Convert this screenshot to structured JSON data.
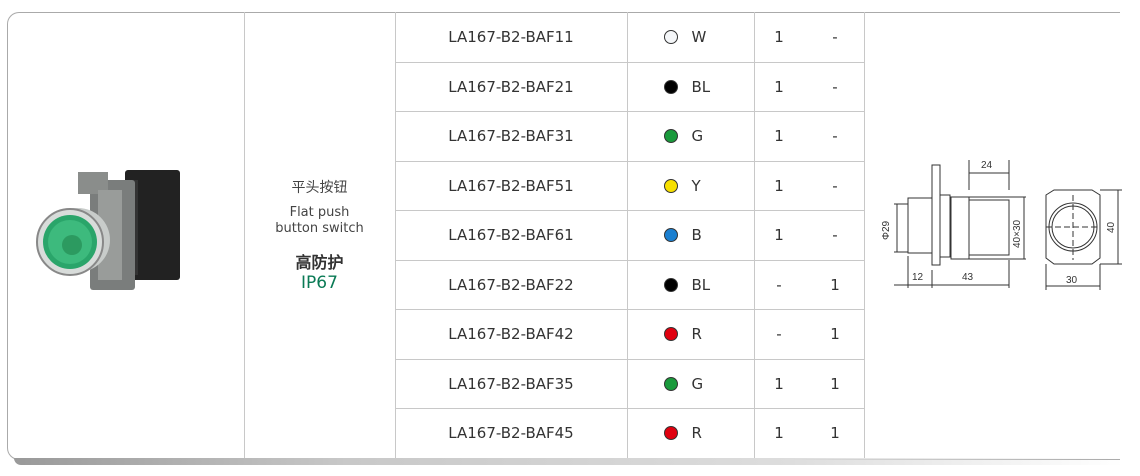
{
  "product": {
    "name_cn": "平头按钮",
    "name_en": "Flat push button switch",
    "protection_cn": "高防护",
    "protection_rating": "IP67",
    "accent_color": "#0a7a55"
  },
  "rows": [
    {
      "model": "LA167-B2-BAF11",
      "color_code": "W",
      "color_hex": "#f4f6f8",
      "no": "1",
      "nc": "-"
    },
    {
      "model": "LA167-B2-BAF21",
      "color_code": "BL",
      "color_hex": "#000000",
      "no": "1",
      "nc": "-"
    },
    {
      "model": "LA167-B2-BAF31",
      "color_code": "G",
      "color_hex": "#1a9a3c",
      "no": "1",
      "nc": "-"
    },
    {
      "model": "LA167-B2-BAF51",
      "color_code": "Y",
      "color_hex": "#f7e000",
      "no": "1",
      "nc": "-"
    },
    {
      "model": "LA167-B2-BAF61",
      "color_code": "B",
      "color_hex": "#1a7fd0",
      "no": "1",
      "nc": "-"
    },
    {
      "model": "LA167-B2-BAF22",
      "color_code": "BL",
      "color_hex": "#000000",
      "no": "-",
      "nc": "1"
    },
    {
      "model": "LA167-B2-BAF42",
      "color_code": "R",
      "color_hex": "#e0000f",
      "no": "-",
      "nc": "1"
    },
    {
      "model": "LA167-B2-BAF35",
      "color_code": "G",
      "color_hex": "#1a9a3c",
      "no": "1",
      "nc": "1"
    },
    {
      "model": "LA167-B2-BAF45",
      "color_code": "R",
      "color_hex": "#e0000f",
      "no": "1",
      "nc": "1"
    }
  ],
  "dimensions": {
    "head_diameter": "Φ29",
    "body_length": "24",
    "body_section": "40×30",
    "head_depth": "12",
    "total_depth": "43",
    "width": "30",
    "height": "40"
  }
}
